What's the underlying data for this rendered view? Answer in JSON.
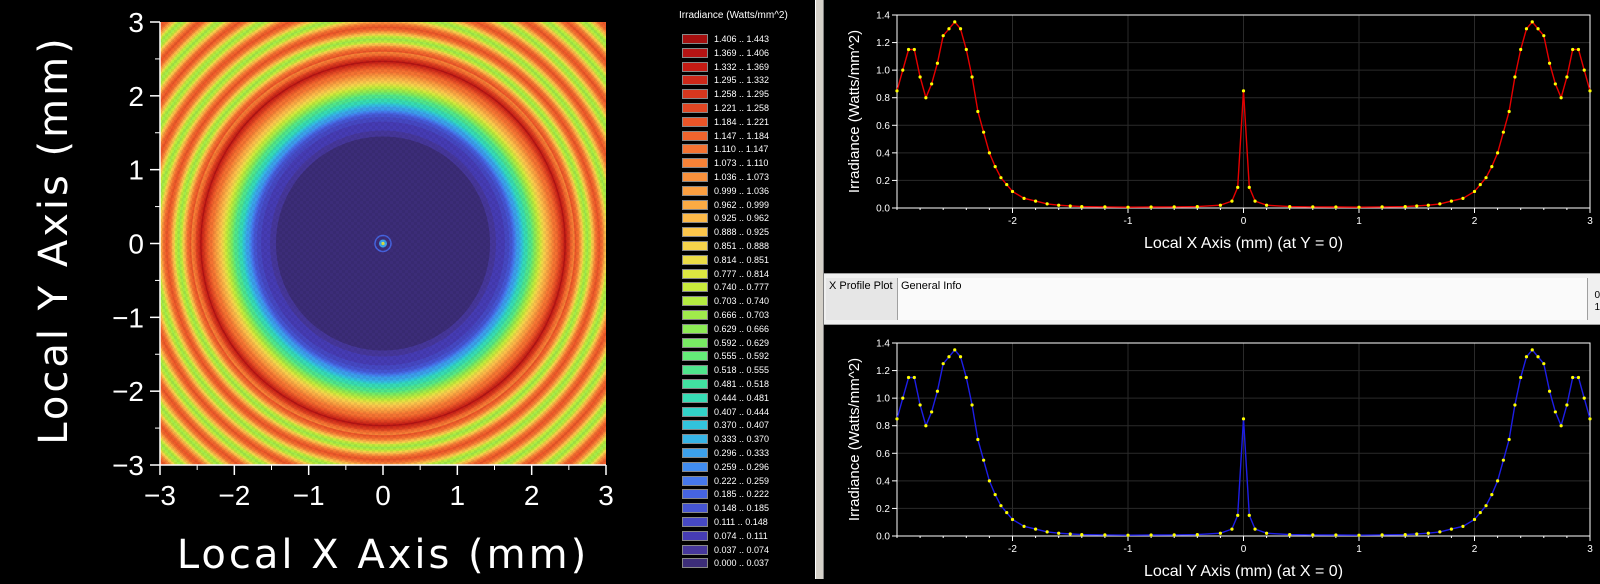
{
  "heatmap": {
    "xlabel": "Local X Axis (mm)",
    "ylabel": "Local Y Axis (mm)",
    "xticks": [
      "−3",
      "−2",
      "−1",
      "0",
      "1",
      "2",
      "3"
    ],
    "yticks": [
      "3",
      "2",
      "1",
      "0",
      "−1",
      "−2",
      "−3"
    ]
  },
  "legend": {
    "title": "Irradiance (Watts/mm^2)",
    "items": [
      {
        "label": "1.406 .. 1.443",
        "color": "#a50f0f"
      },
      {
        "label": "1.369 .. 1.406",
        "color": "#b41414"
      },
      {
        "label": "1.332 .. 1.369",
        "color": "#c31b14"
      },
      {
        "label": "1.295 .. 1.332",
        "color": "#cd2819"
      },
      {
        "label": "1.258 .. 1.295",
        "color": "#d7371e"
      },
      {
        "label": "1.221 .. 1.258",
        "color": "#e14623"
      },
      {
        "label": "1.184 .. 1.221",
        "color": "#eb5528"
      },
      {
        "label": "1.147 .. 1.184",
        "color": "#f0642d"
      },
      {
        "label": "1.110 .. 1.147",
        "color": "#f57332"
      },
      {
        "label": "1.073 .. 1.110",
        "color": "#f78237"
      },
      {
        "label": "1.036 .. 1.073",
        "color": "#f9913c"
      },
      {
        "label": "0.999 .. 1.036",
        "color": "#fa9e40"
      },
      {
        "label": "0.962 .. 0.999",
        "color": "#fbab44"
      },
      {
        "label": "0.925 .. 0.962",
        "color": "#fbb848"
      },
      {
        "label": "0.888 .. 0.925",
        "color": "#fbc54b"
      },
      {
        "label": "0.851 .. 0.888",
        "color": "#f5d24b"
      },
      {
        "label": "0.814 .. 0.851",
        "color": "#ebdc46"
      },
      {
        "label": "0.777 .. 0.814",
        "color": "#dce641"
      },
      {
        "label": "0.740 .. 0.777",
        "color": "#c8eb3c"
      },
      {
        "label": "0.703 .. 0.740",
        "color": "#b4eb41"
      },
      {
        "label": "0.666 .. 0.703",
        "color": "#a0eb4b"
      },
      {
        "label": "0.629 .. 0.666",
        "color": "#8ceb55"
      },
      {
        "label": "0.592 .. 0.629",
        "color": "#78eb64"
      },
      {
        "label": "0.555 .. 0.592",
        "color": "#64eb78"
      },
      {
        "label": "0.518 .. 0.555",
        "color": "#50e68c"
      },
      {
        "label": "0.481 .. 0.518",
        "color": "#41e1a0"
      },
      {
        "label": "0.444 .. 0.481",
        "color": "#37dcb4"
      },
      {
        "label": "0.407 .. 0.444",
        "color": "#32d2c8"
      },
      {
        "label": "0.370 .. 0.407",
        "color": "#32c3dc"
      },
      {
        "label": "0.333 .. 0.370",
        "color": "#37b4e6"
      },
      {
        "label": "0.296 .. 0.333",
        "color": "#3ca0eb"
      },
      {
        "label": "0.259 .. 0.296",
        "color": "#418cf0"
      },
      {
        "label": "0.222 .. 0.259",
        "color": "#4678eb"
      },
      {
        "label": "0.185 .. 0.222",
        "color": "#4664e1"
      },
      {
        "label": "0.148 .. 0.185",
        "color": "#4655d2"
      },
      {
        "label": "0.111 .. 0.148",
        "color": "#4648c3"
      },
      {
        "label": "0.074 .. 0.111",
        "color": "#463cb4"
      },
      {
        "label": "0.037 .. 0.074",
        "color": "#46379b"
      },
      {
        "label": "0.000 .. 0.037",
        "color": "#3c2d78"
      }
    ]
  },
  "tabs": {
    "x_profile": "X Profile Plot",
    "general_info": "General Info",
    "edge_1": "0",
    "edge_2": "1"
  },
  "chart_data": [
    {
      "type": "heatmap",
      "xlabel": "Local X Axis (mm)",
      "ylabel": "Local Y Axis (mm)",
      "xlim": [
        -3,
        3
      ],
      "ylim": [
        -3,
        3
      ],
      "colorbar_title": "Irradiance (Watts/mm^2)",
      "value_range": [
        0.0,
        1.443
      ],
      "ring_peak_radius_mm": 2.45,
      "center_peak_value": 0.85
    },
    {
      "type": "line",
      "xlabel": "Local X Axis (mm) (at Y = 0)",
      "ylabel": "Irradiance (Watts/mm^2)",
      "xlim": [
        -3,
        3
      ],
      "ylim": [
        0,
        1.4
      ],
      "xticks": [
        "-2",
        "-1",
        "0",
        "1",
        "2",
        "3"
      ],
      "yticks": [
        "0.0",
        "0.2",
        "0.4",
        "0.6",
        "0.8",
        "1.0",
        "1.2",
        "1.4"
      ],
      "line_color": "#e60000",
      "marker_color": "#ffff00",
      "x": [
        -3.0,
        -2.95,
        -2.9,
        -2.85,
        -2.8,
        -2.75,
        -2.7,
        -2.65,
        -2.6,
        -2.55,
        -2.5,
        -2.45,
        -2.4,
        -2.35,
        -2.3,
        -2.25,
        -2.2,
        -2.15,
        -2.1,
        -2.05,
        -2.0,
        -1.9,
        -1.8,
        -1.7,
        -1.6,
        -1.5,
        -1.4,
        -1.2,
        -1.0,
        -0.8,
        -0.6,
        -0.4,
        -0.2,
        -0.1,
        -0.05,
        0.0,
        0.05,
        0.1,
        0.2,
        0.4,
        0.6,
        0.8,
        1.0,
        1.2,
        1.4,
        1.5,
        1.6,
        1.7,
        1.8,
        1.9,
        2.0,
        2.05,
        2.1,
        2.15,
        2.2,
        2.25,
        2.3,
        2.35,
        2.4,
        2.45,
        2.5,
        2.55,
        2.6,
        2.65,
        2.7,
        2.75,
        2.8,
        2.85,
        2.9,
        2.95,
        3.0
      ],
      "y": [
        0.85,
        1.0,
        1.15,
        1.15,
        0.95,
        0.8,
        0.9,
        1.05,
        1.25,
        1.3,
        1.35,
        1.3,
        1.15,
        0.95,
        0.7,
        0.55,
        0.4,
        0.3,
        0.22,
        0.17,
        0.12,
        0.07,
        0.05,
        0.03,
        0.02,
        0.015,
        0.01,
        0.008,
        0.006,
        0.007,
        0.008,
        0.01,
        0.02,
        0.05,
        0.15,
        0.85,
        0.15,
        0.05,
        0.02,
        0.01,
        0.008,
        0.007,
        0.006,
        0.008,
        0.01,
        0.015,
        0.02,
        0.03,
        0.05,
        0.07,
        0.12,
        0.17,
        0.22,
        0.3,
        0.4,
        0.55,
        0.7,
        0.95,
        1.15,
        1.3,
        1.35,
        1.3,
        1.25,
        1.05,
        0.9,
        0.8,
        0.95,
        1.15,
        1.15,
        1.0,
        0.85
      ]
    },
    {
      "type": "line",
      "xlabel": "Local Y Axis (mm) (at X = 0)",
      "ylabel": "Irradiance (Watts/mm^2)",
      "xlim": [
        -3,
        3
      ],
      "ylim": [
        0,
        1.4
      ],
      "xticks": [
        "-2",
        "-1",
        "0",
        "1",
        "2",
        "3"
      ],
      "yticks": [
        "0.0",
        "0.2",
        "0.4",
        "0.6",
        "0.8",
        "1.0",
        "1.2",
        "1.4"
      ],
      "line_color": "#1e1ee6",
      "marker_color": "#ffff00",
      "x": [
        -3.0,
        -2.95,
        -2.9,
        -2.85,
        -2.8,
        -2.75,
        -2.7,
        -2.65,
        -2.6,
        -2.55,
        -2.5,
        -2.45,
        -2.4,
        -2.35,
        -2.3,
        -2.25,
        -2.2,
        -2.15,
        -2.1,
        -2.05,
        -2.0,
        -1.9,
        -1.8,
        -1.7,
        -1.6,
        -1.5,
        -1.4,
        -1.2,
        -1.0,
        -0.8,
        -0.6,
        -0.4,
        -0.2,
        -0.1,
        -0.05,
        0.0,
        0.05,
        0.1,
        0.2,
        0.4,
        0.6,
        0.8,
        1.0,
        1.2,
        1.4,
        1.5,
        1.6,
        1.7,
        1.8,
        1.9,
        2.0,
        2.05,
        2.1,
        2.15,
        2.2,
        2.25,
        2.3,
        2.35,
        2.4,
        2.45,
        2.5,
        2.55,
        2.6,
        2.65,
        2.7,
        2.75,
        2.8,
        2.85,
        2.9,
        2.95,
        3.0
      ],
      "y": [
        0.85,
        1.0,
        1.15,
        1.15,
        0.95,
        0.8,
        0.9,
        1.05,
        1.25,
        1.3,
        1.35,
        1.3,
        1.15,
        0.95,
        0.7,
        0.55,
        0.4,
        0.3,
        0.22,
        0.17,
        0.12,
        0.07,
        0.05,
        0.03,
        0.02,
        0.015,
        0.01,
        0.008,
        0.006,
        0.007,
        0.008,
        0.01,
        0.02,
        0.05,
        0.15,
        0.85,
        0.15,
        0.05,
        0.02,
        0.01,
        0.008,
        0.007,
        0.006,
        0.008,
        0.01,
        0.015,
        0.02,
        0.03,
        0.05,
        0.07,
        0.12,
        0.17,
        0.22,
        0.3,
        0.4,
        0.55,
        0.7,
        0.95,
        1.15,
        1.3,
        1.35,
        1.3,
        1.25,
        1.05,
        0.9,
        0.8,
        0.95,
        1.15,
        1.15,
        1.0,
        0.85
      ]
    }
  ]
}
